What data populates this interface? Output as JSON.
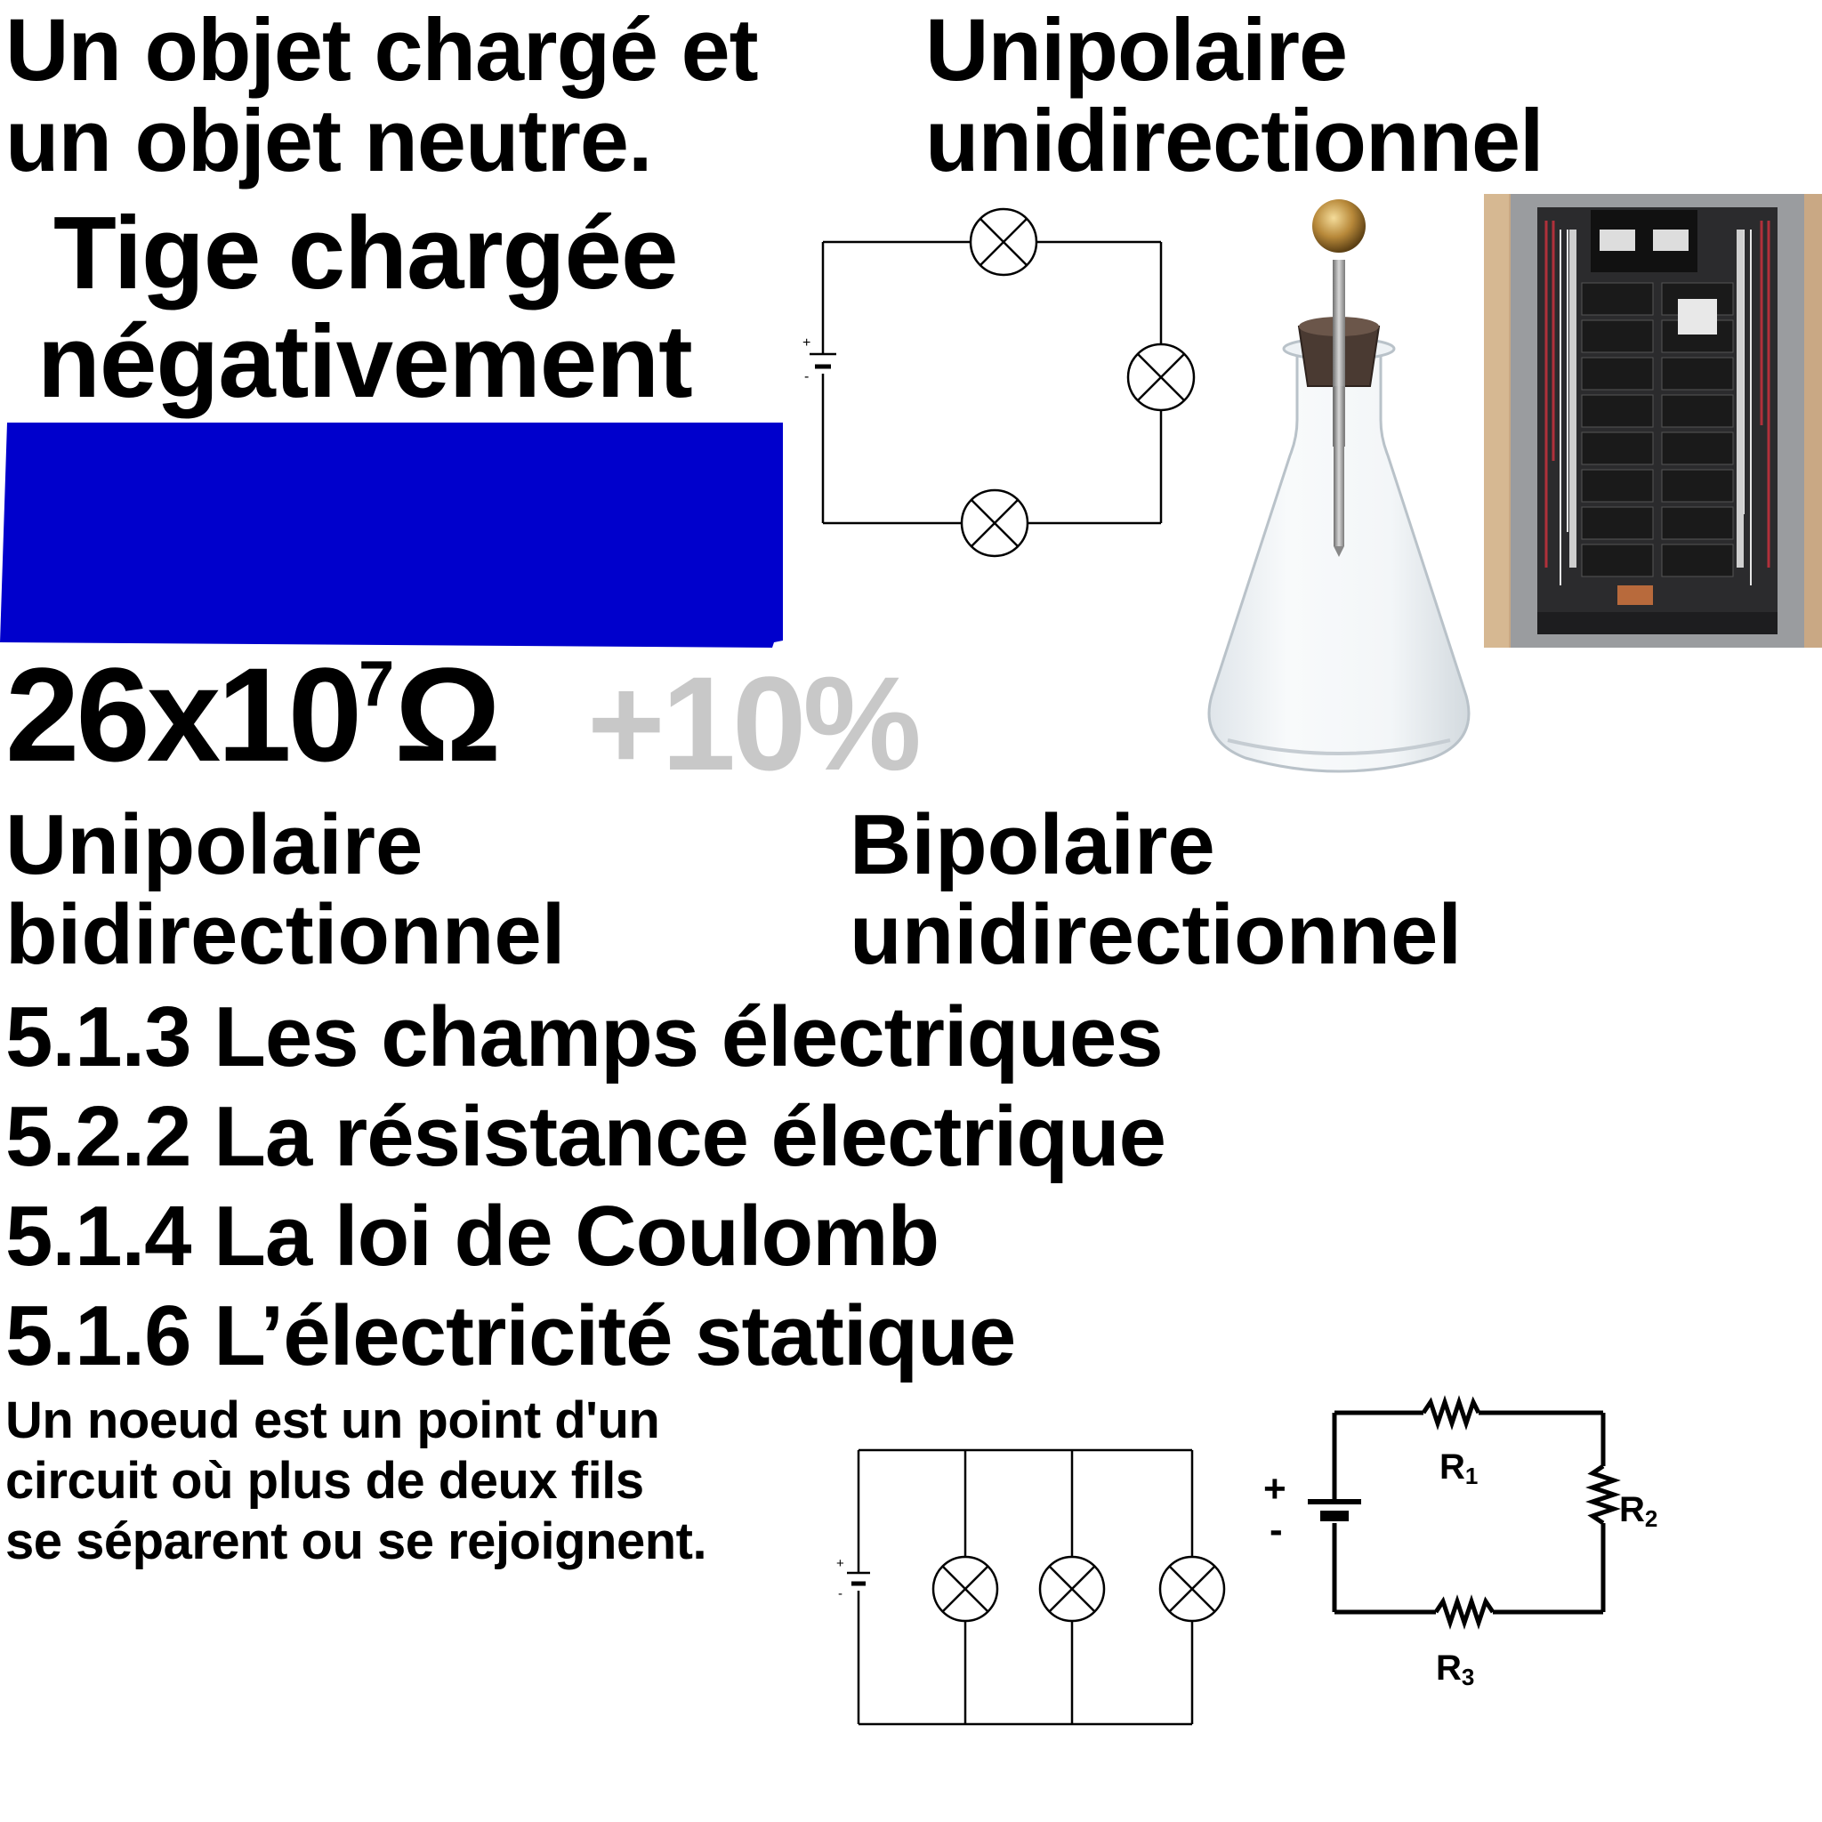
{
  "texts": {
    "charged_neutral": [
      "Un objet chargé et",
      "un objet neutre."
    ],
    "unipolar_unidirectional": [
      "Unipolaire",
      "unidirectionnel"
    ],
    "charged_rod": [
      "Tige chargée",
      "négativement"
    ],
    "resistance_base": "26x10",
    "resistance_exp": "7",
    "resistance_unit": "Ω",
    "tolerance": "+10%",
    "unipolar_bidirectional": [
      "Unipolaire",
      "bidirectionnel"
    ],
    "bipolar_unidirectional": [
      "Bipolaire",
      "unidirectionnel"
    ],
    "topics": [
      "5.1.3 Les champs électriques",
      "5.2.2 La résistance électrique",
      "5.1.4 La loi de Coulomb",
      "5.1.6 L’électricité statique"
    ],
    "node_definition": [
      "Un noeud est un point d'un",
      "circuit où plus de deux fils",
      "se séparent ou se rejoignent."
    ]
  },
  "circuit_labels": {
    "plus": "+",
    "minus": "-",
    "r1": "R",
    "r1_sub": "1",
    "r2": "R",
    "r2_sub": "2",
    "r3": "R",
    "r3_sub": "3"
  },
  "colors": {
    "rod_blue": "#0000cc",
    "tolerance_gray": "#c8c8c8",
    "panel_metal": "#9a9c9f",
    "panel_wood": "#c9a884",
    "wire_red": "#b0303a"
  },
  "icons": {
    "lamp": "lamp-symbol",
    "battery": "battery-symbol",
    "resistor": "resistor-zigzag",
    "electroscope": "electroscope-flask",
    "panel": "electrical-breaker-panel"
  }
}
